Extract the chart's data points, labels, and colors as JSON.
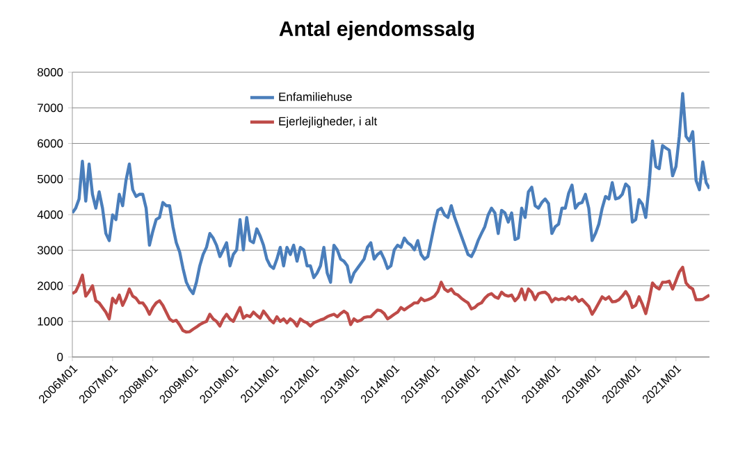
{
  "chart_data": {
    "type": "line",
    "title": "Antal ejendomssalg",
    "categories": [
      "2006M01",
      null,
      null,
      null,
      null,
      null,
      null,
      null,
      null,
      null,
      null,
      null,
      "2007M01",
      null,
      null,
      null,
      null,
      null,
      null,
      null,
      null,
      null,
      null,
      null,
      "2008M01",
      null,
      null,
      null,
      null,
      null,
      null,
      null,
      null,
      null,
      null,
      null,
      "2009M01",
      null,
      null,
      null,
      null,
      null,
      null,
      null,
      null,
      null,
      null,
      null,
      "2010M01",
      null,
      null,
      null,
      null,
      null,
      null,
      null,
      null,
      null,
      null,
      null,
      "2011M01",
      null,
      null,
      null,
      null,
      null,
      null,
      null,
      null,
      null,
      null,
      null,
      "2012M01",
      null,
      null,
      null,
      null,
      null,
      null,
      null,
      null,
      null,
      null,
      null,
      "2013M01",
      null,
      null,
      null,
      null,
      null,
      null,
      null,
      null,
      null,
      null,
      null,
      "2014M01",
      null,
      null,
      null,
      null,
      null,
      null,
      null,
      null,
      null,
      null,
      null,
      "2015M01",
      null,
      null,
      null,
      null,
      null,
      null,
      null,
      null,
      null,
      null,
      null,
      "2016M01",
      null,
      null,
      null,
      null,
      null,
      null,
      null,
      null,
      null,
      null,
      null,
      "2017M01",
      null,
      null,
      null,
      null,
      null,
      null,
      null,
      null,
      null,
      null,
      null,
      "2018M01",
      null,
      null,
      null,
      null,
      null,
      null,
      null,
      null,
      null,
      null,
      null,
      "2019M01",
      null,
      null,
      null,
      null,
      null,
      null,
      null,
      null,
      null,
      null,
      null,
      "2020M01",
      null,
      null,
      null,
      null,
      null,
      null,
      null,
      null,
      null,
      null,
      null,
      "2021M01",
      null,
      null,
      null,
      null,
      null,
      null,
      null,
      null,
      null,
      null
    ],
    "series": [
      {
        "name": "Enfamiliehuse",
        "color": "#4a7ebb",
        "values": [
          4050,
          4180,
          4440,
          5500,
          4380,
          5420,
          4570,
          4180,
          4640,
          4180,
          3470,
          3270,
          3990,
          3860,
          4570,
          4250,
          4960,
          5420,
          4700,
          4510,
          4570,
          4570,
          4180,
          3140,
          3530,
          3860,
          3920,
          4340,
          4250,
          4250,
          3660,
          3210,
          2950,
          2490,
          2100,
          1910,
          1780,
          2100,
          2560,
          2880,
          3080,
          3470,
          3340,
          3140,
          2820,
          3010,
          3210,
          2560,
          2880,
          3010,
          3860,
          3010,
          3920,
          3270,
          3210,
          3600,
          3400,
          3140,
          2750,
          2560,
          2490,
          2750,
          3080,
          2560,
          3080,
          2880,
          3140,
          2690,
          3080,
          3010,
          2560,
          2560,
          2230,
          2360,
          2560,
          3080,
          2360,
          2100,
          3140,
          3010,
          2750,
          2690,
          2560,
          2100,
          2360,
          2490,
          2620,
          2750,
          3080,
          3210,
          2750,
          2880,
          2950,
          2750,
          2490,
          2560,
          3010,
          3140,
          3080,
          3340,
          3210,
          3140,
          3010,
          3270,
          2880,
          2750,
          2820,
          3270,
          3730,
          4120,
          4180,
          3990,
          3920,
          4250,
          3920,
          3660,
          3400,
          3140,
          2880,
          2820,
          3010,
          3270,
          3470,
          3660,
          3990,
          4180,
          4050,
          3470,
          4120,
          4050,
          3790,
          4050,
          3300,
          3340,
          4180,
          3920,
          4640,
          4770,
          4250,
          4180,
          4340,
          4440,
          4310,
          3470,
          3660,
          3730,
          4180,
          4180,
          4600,
          4830,
          4180,
          4310,
          4340,
          4570,
          4180,
          3270,
          3470,
          3730,
          4180,
          4510,
          4440,
          4900,
          4440,
          4470,
          4570,
          4860,
          4770,
          3790,
          3860,
          4420,
          4290,
          3920,
          4830,
          6070,
          5350,
          5290,
          5940,
          5870,
          5810,
          5090,
          5350,
          6200,
          7400,
          6200,
          6070,
          6330,
          4960,
          4700,
          5480,
          4900,
          4730
        ]
      },
      {
        "name": "Ejerlejligheder, i alt",
        "color": "#be4b48",
        "values": [
          1780,
          1840,
          2040,
          2300,
          1710,
          1840,
          2000,
          1580,
          1520,
          1390,
          1260,
          1070,
          1650,
          1520,
          1740,
          1450,
          1650,
          1910,
          1710,
          1650,
          1520,
          1520,
          1390,
          1200,
          1390,
          1520,
          1580,
          1450,
          1260,
          1070,
          1000,
          1030,
          900,
          740,
          700,
          710,
          780,
          840,
          910,
          960,
          1000,
          1200,
          1070,
          1000,
          870,
          1070,
          1200,
          1070,
          1000,
          1200,
          1390,
          1090,
          1170,
          1130,
          1260,
          1170,
          1090,
          1290,
          1170,
          1040,
          960,
          1130,
          1000,
          1070,
          960,
          1070,
          1000,
          870,
          1070,
          1000,
          960,
          870,
          960,
          1000,
          1040,
          1070,
          1130,
          1170,
          1200,
          1130,
          1220,
          1290,
          1220,
          910,
          1070,
          1000,
          1030,
          1110,
          1130,
          1130,
          1230,
          1320,
          1300,
          1220,
          1070,
          1130,
          1200,
          1260,
          1390,
          1320,
          1390,
          1450,
          1520,
          1520,
          1650,
          1580,
          1610,
          1650,
          1710,
          1840,
          2100,
          1910,
          1840,
          1910,
          1780,
          1740,
          1650,
          1580,
          1520,
          1350,
          1390,
          1480,
          1520,
          1650,
          1740,
          1780,
          1690,
          1650,
          1820,
          1740,
          1710,
          1740,
          1580,
          1680,
          1910,
          1610,
          1910,
          1820,
          1610,
          1780,
          1810,
          1820,
          1740,
          1550,
          1650,
          1610,
          1640,
          1610,
          1690,
          1610,
          1690,
          1560,
          1620,
          1520,
          1420,
          1200,
          1350,
          1520,
          1690,
          1620,
          1690,
          1550,
          1560,
          1610,
          1710,
          1840,
          1690,
          1390,
          1450,
          1690,
          1480,
          1220,
          1610,
          2080,
          1970,
          1910,
          2100,
          2100,
          2130,
          1910,
          2140,
          2390,
          2520,
          2080,
          1970,
          1910,
          1610,
          1610,
          1620,
          1680,
          1740
        ]
      }
    ],
    "ylim": [
      0,
      8000
    ],
    "yticks": [
      0,
      1000,
      2000,
      3000,
      4000,
      5000,
      6000,
      7000,
      8000
    ],
    "grid": "y",
    "legend": "top",
    "marker": "none",
    "line_style": "solid"
  }
}
